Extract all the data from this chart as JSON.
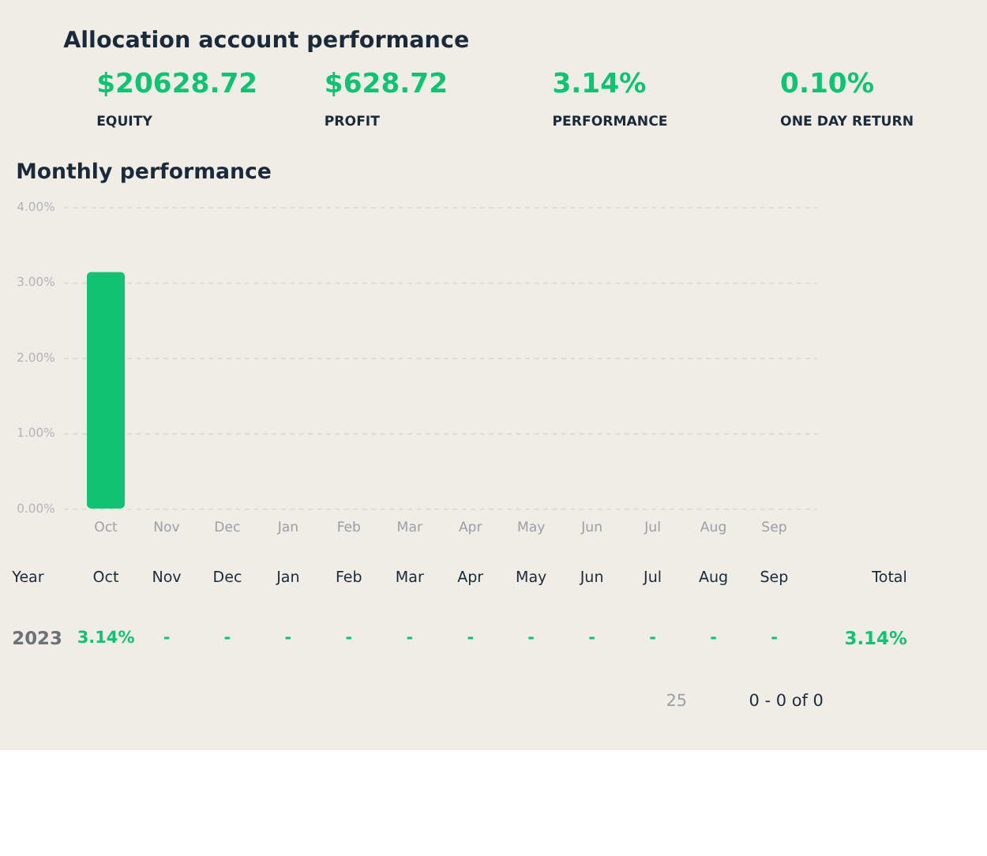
{
  "chart_data": [
    {
      "type": "other",
      "title": "Allocation account performance",
      "annotations": [
        "$20628.72",
        "EQUITY",
        "$628.72",
        "PROFIT",
        "3.14%",
        "PERFORMANCE",
        "0.10%",
        "ONE DAY RETURN"
      ]
    },
    {
      "type": "bar",
      "title": "Monthly performance",
      "categories": [
        "Oct",
        "Nov",
        "Dec",
        "Jan",
        "Feb",
        "Mar",
        "Apr",
        "May",
        "Jun",
        "Jul",
        "Aug",
        "Sep"
      ],
      "values": [
        3.14,
        null,
        null,
        null,
        null,
        null,
        null,
        null,
        null,
        null,
        null,
        null
      ],
      "color": "#10c373",
      "ylim": [
        0,
        4
      ],
      "yticks": [
        {
          "value": 0,
          "label": "0.00%"
        },
        {
          "value": 1,
          "label": "1.00%"
        },
        {
          "value": 2,
          "label": "2.00%"
        },
        {
          "value": 3,
          "label": "3.00%"
        },
        {
          "value": 4,
          "label": "4.00%"
        }
      ],
      "grid": "y",
      "annotations": [
        "Year",
        "Total",
        "2023",
        "3.14%",
        "25",
        "0 - 0 of 0",
        "3.14%",
        "-",
        "-",
        "-",
        "-",
        "-",
        "-",
        "-",
        "-",
        "-",
        "-",
        "-"
      ]
    }
  ]
}
